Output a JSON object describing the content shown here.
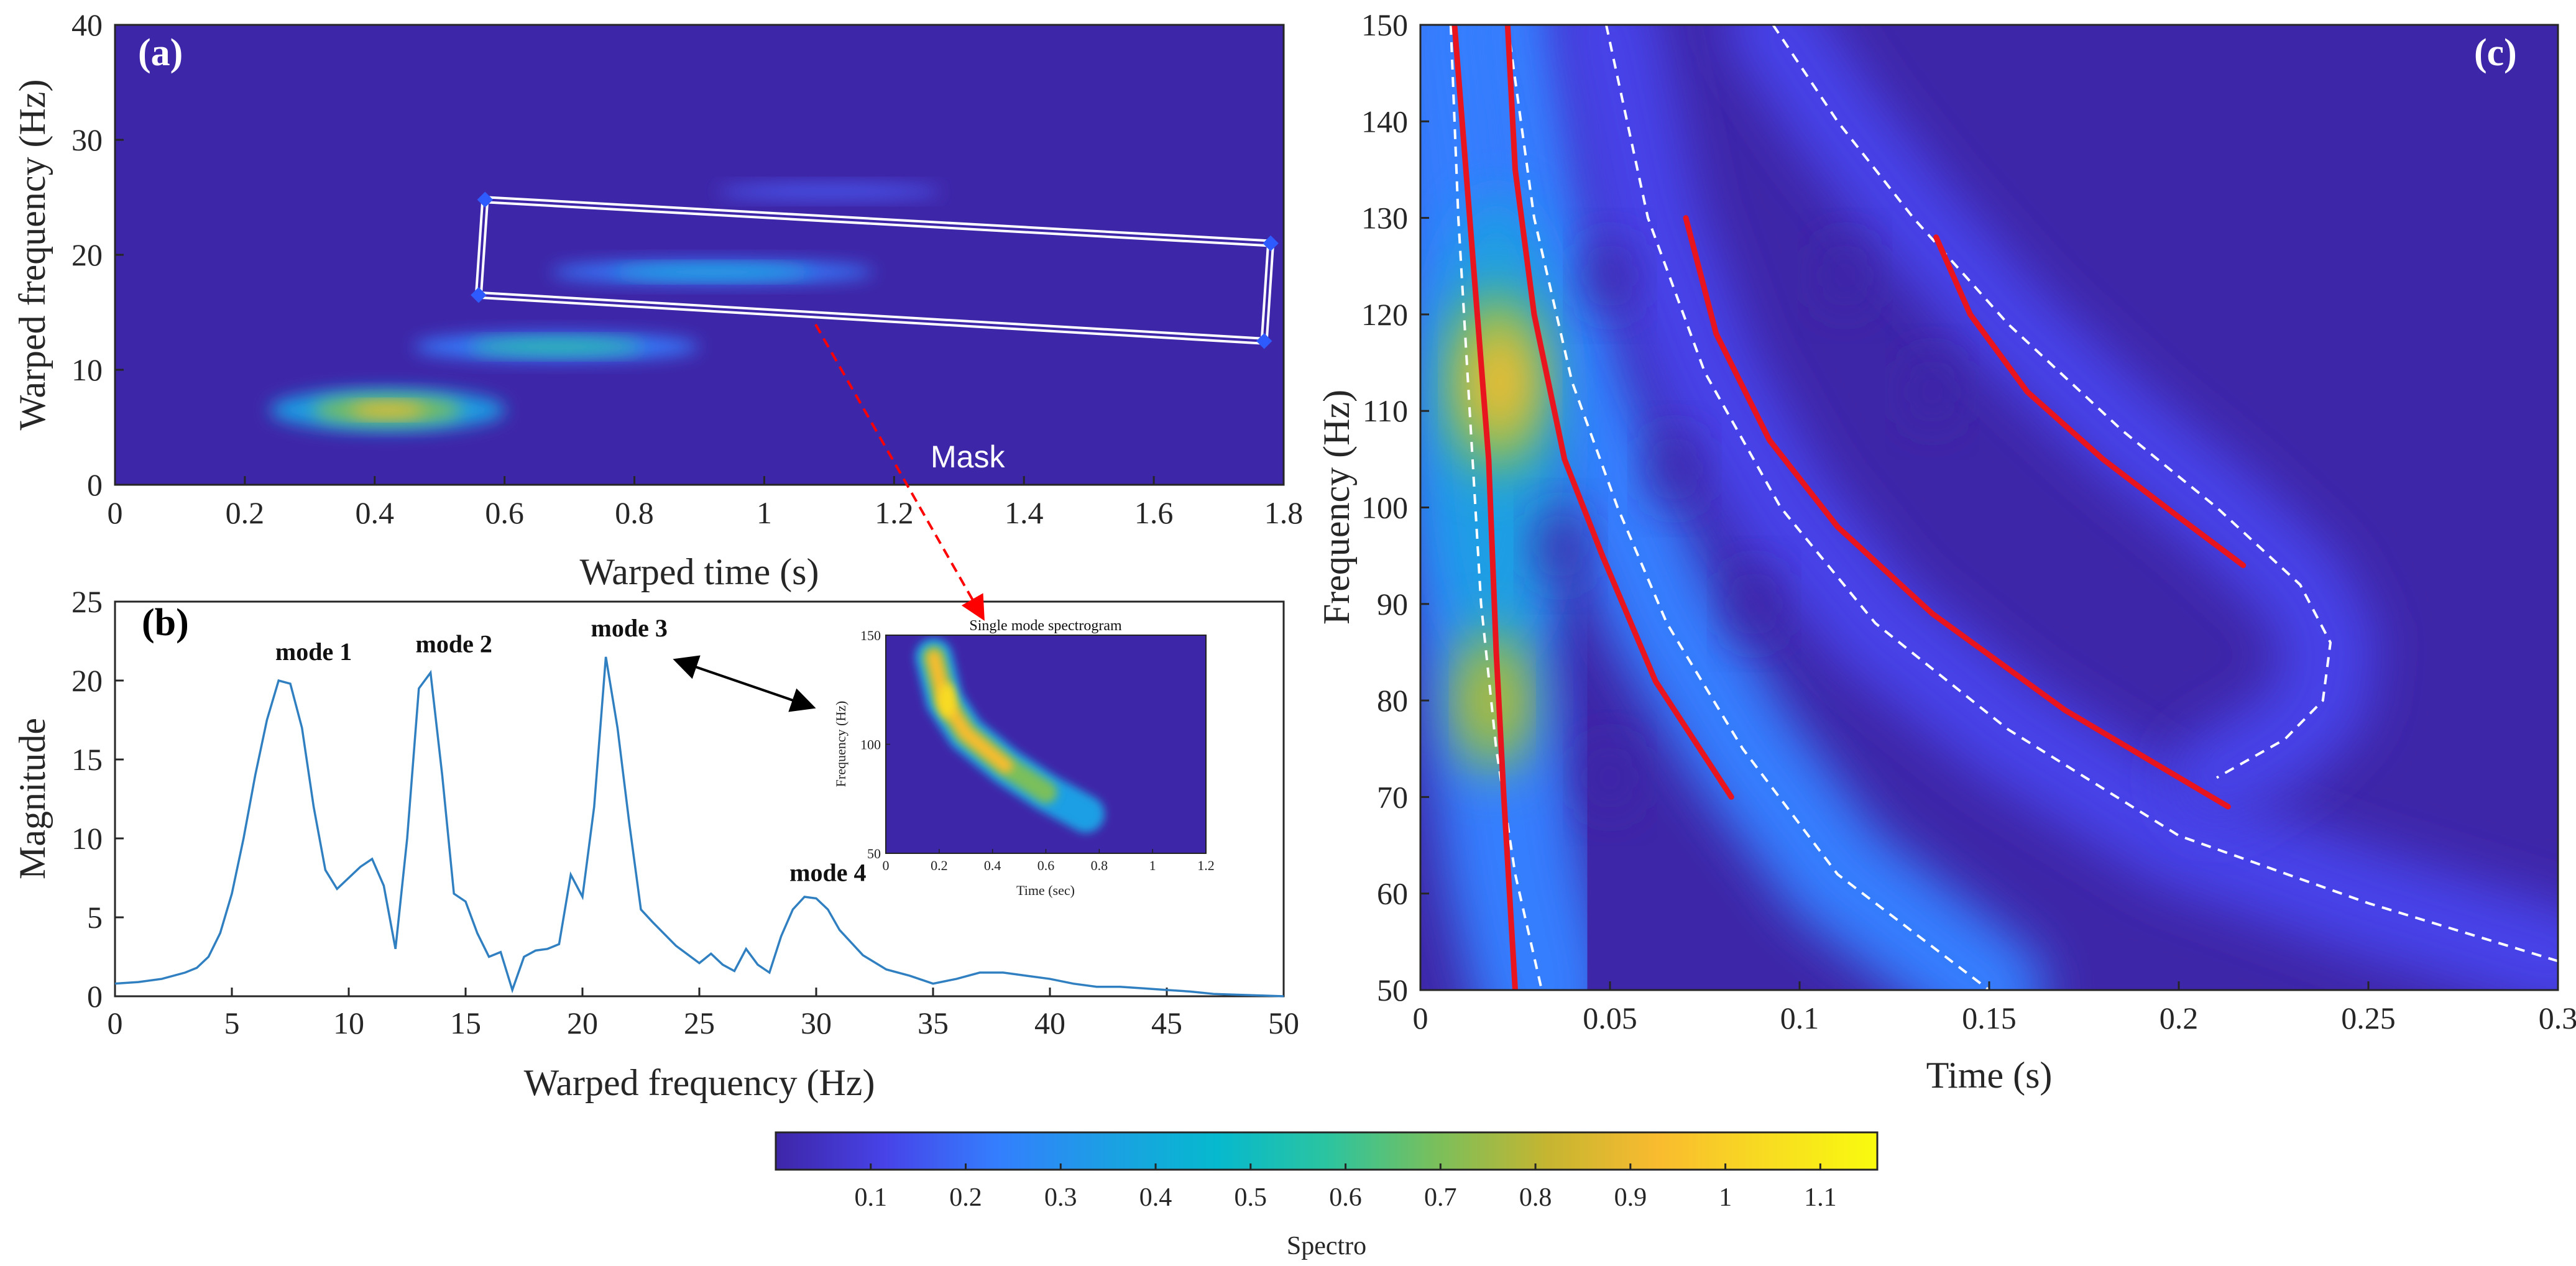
{
  "chart_data": [
    {
      "panel": "(a)",
      "type": "heatmap",
      "xlabel": "Warped time (s)",
      "ylabel": "Warped frequency (Hz)",
      "xlim": [
        0,
        1.8
      ],
      "ylim": [
        0,
        40
      ],
      "xticks": [
        "0",
        "0.2",
        "0.4",
        "0.6",
        "0.8",
        "1",
        "1.2",
        "1.4",
        "1.6",
        "1.8"
      ],
      "yticks": [
        "0",
        "10",
        "20",
        "30",
        "40"
      ],
      "annotation": "Mask",
      "energy_blobs": [
        {
          "mode": 1,
          "t_center": 0.42,
          "f_center": 6.5,
          "peak": 1.0
        },
        {
          "mode": 2,
          "t_center": 0.68,
          "f_center": 12.0,
          "peak": 0.55
        },
        {
          "mode": 3,
          "t_center": 0.92,
          "f_center": 18.5,
          "peak": 0.45
        },
        {
          "mode": 4,
          "t_center": 1.1,
          "f_center": 25.5,
          "peak": 0.12
        }
      ],
      "mask_corners": [
        [
          0.57,
          24.8
        ],
        [
          1.78,
          21.0
        ],
        [
          1.77,
          12.5
        ],
        [
          0.56,
          16.5
        ]
      ]
    },
    {
      "panel": "(b)",
      "type": "line",
      "xlabel": "Warped frequency (Hz)",
      "ylabel": "Magnitude",
      "xlim": [
        0,
        50
      ],
      "ylim": [
        0,
        25
      ],
      "xticks": [
        "0",
        "5",
        "10",
        "15",
        "20",
        "25",
        "30",
        "35",
        "40",
        "45",
        "50"
      ],
      "yticks": [
        "0",
        "5",
        "10",
        "15",
        "20",
        "25"
      ],
      "x": [
        0,
        1,
        2,
        3,
        3.5,
        4,
        4.5,
        5,
        5.5,
        6,
        6.5,
        7,
        7.5,
        8,
        8.5,
        9,
        9.5,
        10,
        10.5,
        11,
        11.5,
        12,
        12.5,
        13,
        13.5,
        14,
        14.5,
        15,
        15.5,
        16,
        16.5,
        17,
        17.5,
        18,
        18.5,
        19,
        19.5,
        20,
        20.5,
        21,
        21.5,
        22,
        22.5,
        23,
        24,
        25,
        25.5,
        26,
        26.5,
        27,
        27.5,
        28,
        28.5,
        29,
        29.5,
        30,
        30.5,
        31,
        32,
        33,
        34,
        35,
        36,
        37,
        38,
        39,
        40,
        41,
        42,
        43,
        44,
        45,
        46,
        47,
        48,
        49,
        50
      ],
      "y": [
        0.8,
        0.9,
        1.1,
        1.5,
        1.8,
        2.5,
        4,
        6.5,
        10,
        14,
        17.5,
        20,
        19.8,
        17,
        12,
        8,
        6.8,
        7.5,
        8.2,
        8.7,
        7,
        3,
        10,
        19.5,
        20.5,
        14,
        6.5,
        6,
        4,
        2.5,
        2.8,
        0.4,
        2.5,
        2.9,
        3,
        3.3,
        7.7,
        6.3,
        12,
        21.5,
        17,
        11,
        5.5,
        4.7,
        3.2,
        2.1,
        2.7,
        2,
        1.6,
        3,
        2,
        1.5,
        3.8,
        5.5,
        6.3,
        6.2,
        5.5,
        4.2,
        2.6,
        1.7,
        1.3,
        0.8,
        1.1,
        1.5,
        1.5,
        1.3,
        1.1,
        0.8,
        0.6,
        0.6,
        0.5,
        0.4,
        0.3,
        0.15,
        0.1,
        0.05,
        0
      ],
      "annotations": [
        {
          "text": "mode 1",
          "x": 8.5,
          "y": 21.3
        },
        {
          "text": "mode 2",
          "x": 14.5,
          "y": 21.8
        },
        {
          "text": "mode 3",
          "x": 22,
          "y": 22.8
        },
        {
          "text": "mode 4",
          "x": 30.5,
          "y": 7.3
        }
      ],
      "inset": {
        "title": "Single mode spectrogram",
        "xlabel": "Time (sec)",
        "ylabel": "Frequency (Hz)",
        "xlim": [
          0,
          1.2
        ],
        "ylim": [
          50,
          150
        ],
        "xticks": [
          "0",
          "0.2",
          "0.4",
          "0.6",
          "0.8",
          "1",
          "1.2"
        ],
        "yticks": [
          "50",
          "100",
          "150"
        ]
      }
    },
    {
      "panel": "(c)",
      "type": "heatmap",
      "xlabel": "Time (s)",
      "ylabel": "Frequency (Hz)",
      "xlim": [
        0,
        0.3
      ],
      "ylim": [
        50,
        150
      ],
      "xticks": [
        "0",
        "0.05",
        "0.1",
        "0.15",
        "0.2",
        "0.25",
        "0.3"
      ],
      "yticks": [
        "50",
        "60",
        "70",
        "80",
        "90",
        "100",
        "110",
        "120",
        "130",
        "140",
        "150"
      ],
      "estimated_modes_red": [
        {
          "mode": 1,
          "t": [
            0.009,
            0.012,
            0.015,
            0.018,
            0.019,
            0.02,
            0.022,
            0.025
          ],
          "f": [
            150,
            135,
            120,
            105,
            95,
            85,
            70,
            50
          ]
        },
        {
          "mode": 2,
          "t": [
            0.023,
            0.025,
            0.03,
            0.038,
            0.048,
            0.062,
            0.082
          ],
          "f": [
            150,
            135,
            120,
            105,
            95,
            82,
            70
          ]
        },
        {
          "mode": 3,
          "t": [
            0.07,
            0.078,
            0.092,
            0.11,
            0.135,
            0.17,
            0.213
          ],
          "f": [
            130,
            118,
            107,
            98,
            89,
            79,
            69
          ]
        },
        {
          "mode": 4,
          "t": [
            0.136,
            0.145,
            0.16,
            0.18,
            0.2,
            0.217
          ],
          "f": [
            128,
            120,
            112,
            105,
            99,
            94
          ]
        }
      ],
      "theoretical_modes_white_dashed": [
        {
          "mode": 1,
          "t": [
            0.008,
            0.01,
            0.013,
            0.016,
            0.02,
            0.025,
            0.032
          ],
          "f": [
            150,
            130,
            110,
            90,
            75,
            62,
            50
          ]
        },
        {
          "mode": 2,
          "t": [
            0.023,
            0.03,
            0.04,
            0.052,
            0.065,
            0.085,
            0.11,
            0.15
          ],
          "f": [
            150,
            130,
            113,
            100,
            88,
            75,
            62,
            50
          ]
        },
        {
          "mode": 3,
          "t": [
            0.049,
            0.06,
            0.075,
            0.095,
            0.12,
            0.155,
            0.2,
            0.25,
            0.3
          ],
          "f": [
            150,
            130,
            114,
            100,
            88,
            77,
            66,
            59,
            53
          ]
        },
        {
          "mode": 4,
          "t": [
            0.093,
            0.11,
            0.13,
            0.155,
            0.185,
            0.21,
            0.232,
            0.24,
            0.238,
            0.228,
            0.21
          ],
          "f": [
            150,
            140,
            130,
            119,
            108,
            100,
            92,
            86,
            80,
            76,
            72
          ]
        }
      ]
    }
  ],
  "panel_labels": {
    "a": "(a)",
    "b": "(b)",
    "c": "(c)"
  },
  "colorbar": {
    "label": "Spectro",
    "range": [
      0,
      1.16
    ],
    "ticks": [
      "0.1",
      "0.2",
      "0.3",
      "0.4",
      "0.5",
      "0.6",
      "0.7",
      "0.8",
      "0.9",
      "1",
      "1.1"
    ],
    "colors": [
      "#3e26a8",
      "#4743e8",
      "#347efe",
      "#1c9fe4",
      "#06b9ce",
      "#2bc4a0",
      "#7abf5b",
      "#c5b531",
      "#f9bb2f",
      "#f8dc21",
      "#f9fb0e"
    ]
  }
}
